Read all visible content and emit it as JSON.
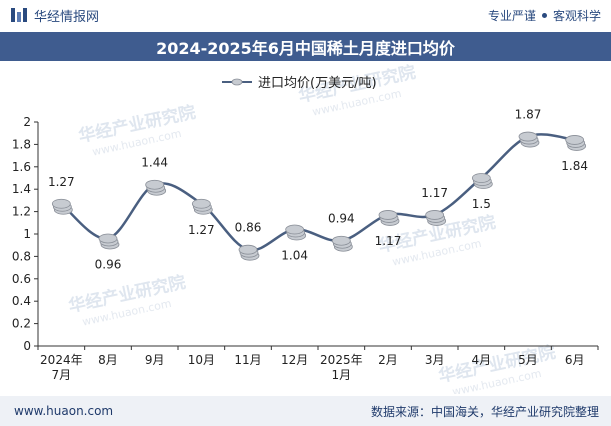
{
  "header": {
    "brand": "华经情报网",
    "slogan_left": "专业严谨",
    "slogan_right": "客观科学"
  },
  "title": "2024-2025年6月中国稀土月度进口均价",
  "footer": {
    "url": "www.huaon.com",
    "source": "数据来源：中国海关，华经产业研究院整理"
  },
  "watermark": {
    "text": "华经产业研究院",
    "url": "www.huaon.com"
  },
  "colors": {
    "line": "#4a5f80",
    "coin": "#c7cbd1",
    "title_bg": "#3f5c8f",
    "brand": "#2a4a7f"
  },
  "chart_data": {
    "type": "line",
    "legend": "进口均价(万美元/吨)",
    "legend_position": "top-center",
    "categories": [
      "2024年\n7月",
      "8月",
      "9月",
      "10月",
      "11月",
      "12月",
      "2025年\n1月",
      "2月",
      "3月",
      "4月",
      "5月",
      "6月"
    ],
    "series": [
      {
        "name": "进口均价(万美元/吨)",
        "values": [
          1.27,
          0.96,
          1.44,
          1.27,
          0.86,
          1.04,
          0.94,
          1.17,
          1.17,
          1.5,
          1.87,
          1.84
        ]
      }
    ],
    "label_side": [
      "above",
      "below",
      "above",
      "below",
      "above",
      "below",
      "above",
      "below",
      "above",
      "below",
      "above",
      "below"
    ],
    "ylim": [
      0,
      2
    ],
    "yticks": [
      0,
      0.2,
      0.4,
      0.6,
      0.8,
      1,
      1.2,
      1.4,
      1.6,
      1.8,
      2
    ],
    "grid": false
  }
}
